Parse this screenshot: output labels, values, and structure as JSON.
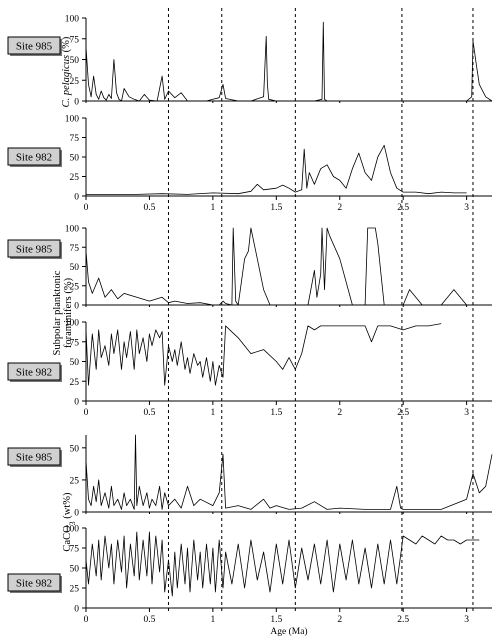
{
  "chart_data": [
    {
      "type": "line",
      "site": "Site 985",
      "ylabel": "C. pelagicus (%)",
      "xlabel": "",
      "xlim": [
        0,
        3.2
      ],
      "ylim": [
        0,
        100
      ],
      "yticks": [
        "0",
        "25",
        "50",
        "75",
        "100"
      ],
      "xticks": [],
      "series": [
        {
          "x": [
            0,
            0.02,
            0.04,
            0.06,
            0.08,
            0.1,
            0.12,
            0.14,
            0.16,
            0.18,
            0.2,
            0.22,
            0.24,
            0.26,
            0.28,
            0.3,
            0.34,
            0.38,
            0.42,
            0.46,
            0.5,
            0.56,
            0.6,
            0.62,
            0.65,
            0.7,
            0.75,
            0.8,
            0.85,
            0.9,
            0.95,
            1.0,
            1.05,
            1.08,
            1.1,
            1.2,
            1.3,
            1.4,
            1.42,
            1.43,
            1.44,
            1.5,
            1.6,
            1.65,
            1.7,
            1.8,
            1.86,
            1.87,
            1.88,
            1.9,
            2.0,
            2.1,
            2.2,
            2.3,
            2.4,
            2.5,
            2.6,
            2.7,
            2.8,
            2.9,
            3.0,
            3.04,
            3.05,
            3.08,
            3.1,
            3.15,
            3.2
          ],
          "y": [
            65,
            20,
            5,
            30,
            8,
            2,
            12,
            4,
            1,
            8,
            3,
            50,
            10,
            2,
            0,
            15,
            5,
            2,
            0,
            8,
            1,
            0,
            30,
            2,
            12,
            4,
            10,
            0,
            0,
            0,
            0,
            2,
            4,
            20,
            3,
            0,
            0,
            5,
            78,
            20,
            2,
            0,
            0,
            0,
            0,
            0,
            2,
            95,
            2,
            0,
            0,
            0,
            0,
            0,
            0,
            0,
            0,
            0,
            0,
            0,
            0,
            5,
            72,
            40,
            20,
            5,
            0
          ]
        }
      ]
    },
    {
      "type": "line",
      "site": "Site 982",
      "ylabel": "",
      "xlabel": "",
      "xlim": [
        0,
        3.2
      ],
      "ylim": [
        0,
        100
      ],
      "yticks": [
        "0",
        "25",
        "50",
        "75",
        "100"
      ],
      "xticks": [
        "0",
        "0.5",
        "1",
        "1.5",
        "2",
        "2.5",
        "3"
      ],
      "series": [
        {
          "x": [
            0,
            0.2,
            0.4,
            0.6,
            0.8,
            1.0,
            1.2,
            1.3,
            1.35,
            1.4,
            1.5,
            1.55,
            1.6,
            1.65,
            1.7,
            1.72,
            1.74,
            1.76,
            1.8,
            1.85,
            1.9,
            1.95,
            2.0,
            2.05,
            2.1,
            2.15,
            2.2,
            2.25,
            2.3,
            2.35,
            2.4,
            2.45,
            2.5,
            2.6,
            2.7,
            2.8,
            2.9,
            3.0
          ],
          "y": [
            2,
            2,
            2,
            3,
            2,
            4,
            3,
            6,
            15,
            8,
            10,
            14,
            10,
            5,
            8,
            60,
            10,
            30,
            15,
            35,
            40,
            25,
            20,
            10,
            35,
            55,
            30,
            20,
            50,
            65,
            30,
            10,
            5,
            5,
            3,
            5,
            4,
            4
          ]
        }
      ]
    },
    {
      "type": "line",
      "site": "Site 985",
      "ylabel": "Subpolar planktonic foraminifers (%)",
      "xlabel": "",
      "xlim": [
        0,
        3.2
      ],
      "ylim": [
        0,
        100
      ],
      "yticks": [
        "0",
        "25",
        "50",
        "75",
        "100"
      ],
      "xticks": [],
      "series": [
        {
          "x": [
            0,
            0.02,
            0.05,
            0.1,
            0.15,
            0.2,
            0.25,
            0.3,
            0.4,
            0.5,
            0.6,
            0.65,
            0.7,
            0.8,
            0.9,
            1.0,
            1.05,
            1.08,
            1.1,
            1.15,
            1.16,
            1.18,
            1.2,
            1.25,
            1.28,
            1.3,
            1.35,
            1.4,
            1.45,
            1.6,
            1.7,
            1.75,
            1.8,
            1.82,
            1.85,
            1.86,
            1.88,
            1.9,
            1.92,
            2.0,
            2.1,
            2.2,
            2.22,
            2.28,
            2.3,
            2.35,
            2.5,
            2.55,
            2.65,
            2.8,
            2.9,
            3.0,
            3.1,
            3.2
          ],
          "y": [
            70,
            30,
            15,
            35,
            10,
            20,
            8,
            15,
            10,
            5,
            10,
            3,
            5,
            2,
            3,
            0,
            0,
            5,
            2,
            0,
            100,
            5,
            0,
            60,
            70,
            100,
            60,
            20,
            0,
            0,
            0,
            0,
            45,
            10,
            40,
            100,
            20,
            100,
            90,
            60,
            0,
            0,
            100,
            100,
            80,
            0,
            0,
            20,
            0,
            0,
            20,
            0,
            0,
            0
          ]
        }
      ]
    },
    {
      "type": "line",
      "site": "Site 982",
      "ylabel": "",
      "xlabel": "",
      "xlim": [
        0,
        3.2
      ],
      "ylim": [
        0,
        100
      ],
      "yticks": [
        "0",
        "25",
        "50",
        "75",
        "100"
      ],
      "xticks": [
        "0",
        "0.5",
        "1",
        "1.5",
        "2",
        "2.5",
        "3"
      ],
      "series": [
        {
          "x": [
            0,
            0.02,
            0.05,
            0.08,
            0.1,
            0.12,
            0.15,
            0.18,
            0.2,
            0.22,
            0.25,
            0.28,
            0.3,
            0.32,
            0.35,
            0.38,
            0.4,
            0.42,
            0.45,
            0.48,
            0.5,
            0.52,
            0.55,
            0.58,
            0.6,
            0.62,
            0.65,
            0.68,
            0.7,
            0.72,
            0.75,
            0.78,
            0.8,
            0.82,
            0.85,
            0.88,
            0.9,
            0.92,
            0.95,
            0.98,
            1.0,
            1.02,
            1.05,
            1.08,
            1.1,
            1.2,
            1.3,
            1.4,
            1.5,
            1.55,
            1.6,
            1.65,
            1.7,
            1.75,
            1.8,
            1.85,
            1.9,
            2.0,
            2.1,
            2.2,
            2.25,
            2.3,
            2.4,
            2.5,
            2.6,
            2.7,
            2.8
          ],
          "y": [
            90,
            20,
            85,
            40,
            90,
            55,
            70,
            45,
            85,
            60,
            90,
            40,
            75,
            55,
            88,
            40,
            90,
            60,
            80,
            50,
            85,
            70,
            90,
            80,
            88,
            20,
            70,
            50,
            65,
            45,
            75,
            40,
            55,
            35,
            60,
            45,
            50,
            30,
            55,
            25,
            50,
            20,
            45,
            30,
            95,
            80,
            60,
            65,
            50,
            40,
            55,
            40,
            60,
            95,
            90,
            95,
            95,
            95,
            95,
            95,
            75,
            95,
            95,
            90,
            95,
            95,
            98
          ]
        }
      ]
    },
    {
      "type": "line",
      "site": "Site 985",
      "ylabel": "CaCO3 (wt%)",
      "xlabel": "",
      "xlim": [
        0,
        3.2
      ],
      "ylim": [
        0,
        60
      ],
      "yticks": [
        "0",
        "25",
        "50"
      ],
      "xticks": [],
      "series": [
        {
          "x": [
            0,
            0.02,
            0.04,
            0.06,
            0.08,
            0.1,
            0.12,
            0.15,
            0.18,
            0.2,
            0.22,
            0.25,
            0.28,
            0.3,
            0.32,
            0.35,
            0.38,
            0.39,
            0.4,
            0.42,
            0.45,
            0.48,
            0.5,
            0.52,
            0.55,
            0.58,
            0.6,
            0.62,
            0.65,
            0.7,
            0.75,
            0.8,
            0.85,
            0.9,
            1.0,
            1.05,
            1.08,
            1.1,
            1.2,
            1.3,
            1.4,
            1.45,
            1.5,
            1.6,
            1.7,
            1.8,
            1.9,
            2.0,
            2.2,
            2.4,
            2.45,
            2.48,
            2.5,
            2.6,
            2.8,
            3.0,
            3.05,
            3.1,
            3.15,
            3.2
          ],
          "y": [
            40,
            10,
            5,
            20,
            8,
            25,
            5,
            15,
            3,
            20,
            5,
            10,
            2,
            15,
            5,
            10,
            2,
            60,
            5,
            20,
            5,
            15,
            3,
            10,
            5,
            20,
            2,
            15,
            5,
            10,
            3,
            20,
            5,
            10,
            5,
            15,
            45,
            3,
            5,
            2,
            10,
            3,
            5,
            2,
            3,
            8,
            2,
            3,
            2,
            2,
            20,
            3,
            2,
            2,
            2,
            10,
            30,
            15,
            20,
            45
          ]
        }
      ]
    },
    {
      "type": "line",
      "site": "Site 982",
      "ylabel": "",
      "xlabel": "Age (Ma)",
      "xlim": [
        0,
        3.2
      ],
      "ylim": [
        0,
        100
      ],
      "yticks": [
        "0",
        "25",
        "50",
        "75",
        "100"
      ],
      "xticks": [
        "0",
        "0.5",
        "1",
        "1.5",
        "2",
        "2.5",
        "3"
      ],
      "series": [
        {
          "x": [
            0,
            0.02,
            0.05,
            0.08,
            0.1,
            0.12,
            0.15,
            0.18,
            0.2,
            0.22,
            0.25,
            0.28,
            0.3,
            0.32,
            0.35,
            0.38,
            0.4,
            0.42,
            0.45,
            0.48,
            0.5,
            0.52,
            0.55,
            0.58,
            0.6,
            0.62,
            0.65,
            0.68,
            0.7,
            0.72,
            0.75,
            0.78,
            0.8,
            0.82,
            0.85,
            0.88,
            0.9,
            0.92,
            0.95,
            0.98,
            1.0,
            1.02,
            1.05,
            1.08,
            1.1,
            1.15,
            1.2,
            1.25,
            1.3,
            1.35,
            1.4,
            1.45,
            1.5,
            1.55,
            1.6,
            1.65,
            1.7,
            1.75,
            1.8,
            1.85,
            1.9,
            1.95,
            2.0,
            2.05,
            2.1,
            2.15,
            2.2,
            2.25,
            2.3,
            2.35,
            2.4,
            2.45,
            2.5,
            2.55,
            2.6,
            2.65,
            2.7,
            2.75,
            2.8,
            2.85,
            2.9,
            2.95,
            3.0,
            3.05,
            3.1
          ],
          "y": [
            60,
            30,
            80,
            40,
            85,
            35,
            90,
            50,
            80,
            30,
            85,
            45,
            90,
            25,
            80,
            40,
            95,
            35,
            85,
            40,
            95,
            30,
            90,
            45,
            85,
            20,
            60,
            15,
            70,
            25,
            80,
            30,
            75,
            20,
            85,
            35,
            70,
            25,
            80,
            30,
            75,
            20,
            85,
            25,
            70,
            30,
            80,
            25,
            85,
            35,
            70,
            20,
            80,
            30,
            85,
            25,
            75,
            35,
            80,
            30,
            85,
            20,
            80,
            35,
            85,
            30,
            75,
            25,
            80,
            30,
            85,
            30,
            90,
            85,
            80,
            90,
            85,
            80,
            90,
            85,
            85,
            80,
            85,
            85,
            85
          ]
        }
      ]
    }
  ]
}
